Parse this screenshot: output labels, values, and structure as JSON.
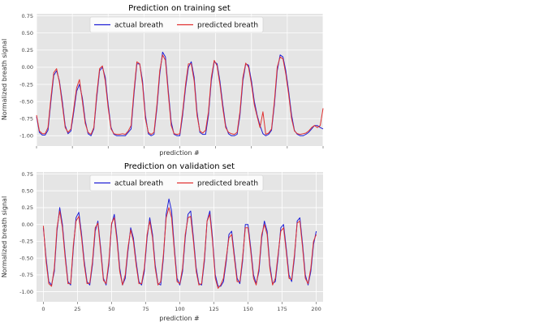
{
  "chart_data": [
    {
      "type": "line",
      "title": "Prediction on training set",
      "xlabel": "prediction #",
      "ylabel": "Normalized breath signal",
      "xlim": [
        0,
        200
      ],
      "ylim": [
        -1.15,
        0.78
      ],
      "x_ticks_labeled": false,
      "yticks": [
        "0.75",
        "0.50",
        "0.25",
        "0.00",
        "-0.25",
        "-0.50",
        "-0.75",
        "-1.00"
      ],
      "ytick_values": [
        0.75,
        0.5,
        0.25,
        0.0,
        -0.25,
        -0.5,
        -0.75,
        -1.0
      ],
      "grid": true,
      "legend_position": "top-center",
      "series": [
        {
          "name": "actual breath",
          "color": "#1f1fd6",
          "x": [
            0,
            2,
            4,
            6,
            8,
            10,
            12,
            14,
            16,
            18,
            20,
            22,
            24,
            26,
            28,
            30,
            32,
            34,
            36,
            38,
            40,
            42,
            44,
            46,
            48,
            50,
            52,
            54,
            56,
            58,
            60,
            62,
            64,
            66,
            68,
            70,
            72,
            74,
            76,
            78,
            80,
            82,
            84,
            86,
            88,
            90,
            92,
            94,
            96,
            98,
            100,
            102,
            104,
            106,
            108,
            110,
            112,
            114,
            116,
            118,
            120,
            122,
            124,
            126,
            128,
            130,
            132,
            134,
            136,
            138,
            140,
            142,
            144,
            146,
            148,
            150,
            152,
            154,
            156,
            158,
            160,
            162,
            164,
            166,
            168,
            170,
            172,
            174,
            176,
            178,
            180,
            182,
            184,
            186,
            188,
            190,
            192,
            194,
            196,
            198,
            200
          ],
          "values": [
            -0.72,
            -0.95,
            -0.99,
            -0.99,
            -0.92,
            -0.5,
            -0.12,
            -0.05,
            -0.2,
            -0.5,
            -0.85,
            -0.97,
            -0.93,
            -0.65,
            -0.35,
            -0.25,
            -0.45,
            -0.78,
            -0.97,
            -1.0,
            -0.9,
            -0.45,
            -0.05,
            0.0,
            -0.15,
            -0.55,
            -0.88,
            -0.98,
            -1.0,
            -1.0,
            -1.0,
            -1.0,
            -0.95,
            -0.9,
            -0.4,
            0.05,
            0.05,
            -0.2,
            -0.7,
            -0.97,
            -1.0,
            -0.98,
            -0.6,
            -0.1,
            0.22,
            0.15,
            -0.35,
            -0.8,
            -0.98,
            -1.0,
            -1.0,
            -0.7,
            -0.3,
            0.0,
            0.08,
            -0.15,
            -0.65,
            -0.95,
            -0.98,
            -0.98,
            -0.7,
            -0.2,
            0.08,
            0.05,
            -0.2,
            -0.55,
            -0.85,
            -0.97,
            -1.0,
            -1.0,
            -0.98,
            -0.7,
            -0.2,
            0.05,
            0.03,
            -0.2,
            -0.5,
            -0.7,
            -0.85,
            -0.97,
            -1.0,
            -0.98,
            -0.92,
            -0.55,
            -0.05,
            0.18,
            0.15,
            -0.05,
            -0.35,
            -0.7,
            -0.92,
            -0.98,
            -1.0,
            -1.0,
            -0.98,
            -0.95,
            -0.9,
            -0.85,
            -0.85,
            -0.88,
            -0.9
          ]
        },
        {
          "name": "predicted breath",
          "color": "#e03030",
          "x": [
            0,
            2,
            4,
            6,
            8,
            10,
            12,
            14,
            16,
            18,
            20,
            22,
            24,
            26,
            28,
            30,
            32,
            34,
            36,
            38,
            40,
            42,
            44,
            46,
            48,
            50,
            52,
            54,
            56,
            58,
            60,
            62,
            64,
            66,
            68,
            70,
            72,
            74,
            76,
            78,
            80,
            82,
            84,
            86,
            88,
            90,
            92,
            94,
            96,
            98,
            100,
            102,
            104,
            106,
            108,
            110,
            112,
            114,
            116,
            118,
            120,
            122,
            124,
            126,
            128,
            130,
            132,
            134,
            136,
            138,
            140,
            142,
            144,
            146,
            148,
            150,
            152,
            154,
            156,
            158,
            160,
            162,
            164,
            166,
            168,
            170,
            172,
            174,
            176,
            178,
            180,
            182,
            184,
            186,
            188,
            190,
            192,
            194,
            196,
            198,
            200
          ],
          "values": [
            -0.7,
            -0.93,
            -0.97,
            -0.97,
            -0.88,
            -0.45,
            -0.08,
            -0.02,
            -0.22,
            -0.55,
            -0.88,
            -0.95,
            -0.9,
            -0.6,
            -0.3,
            -0.18,
            -0.5,
            -0.82,
            -0.95,
            -0.98,
            -0.88,
            -0.4,
            -0.02,
            0.02,
            -0.2,
            -0.6,
            -0.9,
            -0.97,
            -0.98,
            -0.98,
            -0.97,
            -0.98,
            -0.93,
            -0.85,
            -0.35,
            0.08,
            0.05,
            -0.25,
            -0.75,
            -0.95,
            -0.98,
            -0.95,
            -0.55,
            -0.05,
            0.18,
            0.1,
            -0.4,
            -0.85,
            -0.97,
            -0.98,
            -0.97,
            -0.65,
            -0.25,
            0.05,
            0.05,
            -0.2,
            -0.7,
            -0.93,
            -0.96,
            -0.92,
            -0.65,
            -0.15,
            0.1,
            0.02,
            -0.25,
            -0.6,
            -0.88,
            -0.95,
            -0.97,
            -0.98,
            -0.95,
            -0.65,
            -0.15,
            0.06,
            0.0,
            -0.25,
            -0.55,
            -0.72,
            -0.88,
            -0.65,
            -0.98,
            -0.96,
            -0.9,
            -0.5,
            0.0,
            0.15,
            0.12,
            -0.1,
            -0.4,
            -0.75,
            -0.93,
            -0.97,
            -0.98,
            -0.97,
            -0.96,
            -0.93,
            -0.88,
            -0.85,
            -0.88,
            -0.85,
            -0.6
          ]
        }
      ]
    },
    {
      "type": "line",
      "title": "Prediction on validation set",
      "xlabel": "prediction #",
      "ylabel": "Normalized breath signal",
      "xlim": [
        -5,
        205
      ],
      "ylim": [
        -1.15,
        0.78
      ],
      "xticks": [
        "0",
        "25",
        "50",
        "75",
        "100",
        "125",
        "150",
        "175",
        "200"
      ],
      "xtick_values": [
        0,
        25,
        50,
        75,
        100,
        125,
        150,
        175,
        200
      ],
      "yticks": [
        "0.75",
        "0.50",
        "0.25",
        "0.00",
        "-0.25",
        "-0.50",
        "-0.75",
        "-1.00"
      ],
      "ytick_values": [
        0.75,
        0.5,
        0.25,
        0.0,
        -0.25,
        -0.5,
        -0.75,
        -1.0
      ],
      "grid": true,
      "legend_position": "top-center",
      "series": [
        {
          "name": "actual breath",
          "color": "#1f1fd6",
          "x": [
            0,
            2,
            4,
            6,
            8,
            10,
            12,
            14,
            16,
            18,
            20,
            22,
            24,
            26,
            28,
            30,
            32,
            34,
            36,
            38,
            40,
            42,
            44,
            46,
            48,
            50,
            52,
            54,
            56,
            58,
            60,
            62,
            64,
            66,
            68,
            70,
            72,
            74,
            76,
            78,
            80,
            82,
            84,
            86,
            88,
            90,
            92,
            94,
            96,
            98,
            100,
            102,
            104,
            106,
            108,
            110,
            112,
            114,
            116,
            118,
            120,
            122,
            124,
            126,
            128,
            130,
            132,
            134,
            136,
            138,
            140,
            142,
            144,
            146,
            148,
            150,
            152,
            154,
            156,
            158,
            160,
            162,
            164,
            166,
            168,
            170,
            172,
            174,
            176,
            178,
            180,
            182,
            184,
            186,
            188,
            190,
            192,
            194,
            196,
            198,
            200
          ],
          "values": [
            -0.05,
            -0.5,
            -0.85,
            -0.9,
            -0.7,
            -0.1,
            0.25,
            0.0,
            -0.45,
            -0.85,
            -0.9,
            -0.35,
            0.1,
            0.18,
            -0.15,
            -0.55,
            -0.85,
            -0.9,
            -0.6,
            -0.1,
            0.05,
            -0.35,
            -0.8,
            -0.9,
            -0.6,
            0.0,
            0.15,
            -0.2,
            -0.65,
            -0.9,
            -0.8,
            -0.4,
            -0.05,
            -0.2,
            -0.55,
            -0.85,
            -0.9,
            -0.7,
            -0.2,
            0.1,
            -0.15,
            -0.6,
            -0.88,
            -0.9,
            -0.5,
            0.15,
            0.38,
            0.2,
            -0.35,
            -0.8,
            -0.9,
            -0.7,
            -0.2,
            0.15,
            0.2,
            -0.2,
            -0.65,
            -0.88,
            -0.9,
            -0.55,
            0.05,
            0.2,
            -0.2,
            -0.75,
            -0.92,
            -0.92,
            -0.85,
            -0.55,
            -0.15,
            -0.1,
            -0.45,
            -0.8,
            -0.88,
            -0.55,
            0.0,
            0.0,
            -0.35,
            -0.75,
            -0.88,
            -0.7,
            -0.2,
            0.05,
            -0.1,
            -0.6,
            -0.88,
            -0.85,
            -0.5,
            -0.05,
            0.0,
            -0.35,
            -0.75,
            -0.85,
            -0.5,
            0.05,
            0.1,
            -0.3,
            -0.75,
            -0.9,
            -0.7,
            -0.3,
            -0.1
          ]
        },
        {
          "name": "predicted breath",
          "color": "#e03030",
          "x": [
            0,
            2,
            4,
            6,
            8,
            10,
            12,
            14,
            16,
            18,
            20,
            22,
            24,
            26,
            28,
            30,
            32,
            34,
            36,
            38,
            40,
            42,
            44,
            46,
            48,
            50,
            52,
            54,
            56,
            58,
            60,
            62,
            64,
            66,
            68,
            70,
            72,
            74,
            76,
            78,
            80,
            82,
            84,
            86,
            88,
            90,
            92,
            94,
            96,
            98,
            100,
            102,
            104,
            106,
            108,
            110,
            112,
            114,
            116,
            118,
            120,
            122,
            124,
            126,
            128,
            130,
            132,
            134,
            136,
            138,
            140,
            142,
            144,
            146,
            148,
            150,
            152,
            154,
            156,
            158,
            160,
            162,
            164,
            166,
            168,
            170,
            172,
            174,
            176,
            178,
            180,
            182,
            184,
            186,
            188,
            190,
            192,
            194,
            196,
            198,
            200
          ],
          "values": [
            -0.02,
            -0.55,
            -0.88,
            -0.92,
            -0.65,
            -0.05,
            0.2,
            -0.05,
            -0.5,
            -0.88,
            -0.88,
            -0.3,
            0.05,
            0.12,
            -0.2,
            -0.6,
            -0.88,
            -0.87,
            -0.55,
            -0.05,
            0.02,
            -0.4,
            -0.83,
            -0.88,
            -0.55,
            0.02,
            0.1,
            -0.25,
            -0.7,
            -0.9,
            -0.75,
            -0.35,
            -0.08,
            -0.25,
            -0.6,
            -0.88,
            -0.88,
            -0.65,
            -0.15,
            0.05,
            -0.2,
            -0.65,
            -0.9,
            -0.85,
            -0.45,
            0.1,
            0.25,
            0.1,
            -0.4,
            -0.85,
            -0.88,
            -0.65,
            -0.15,
            0.1,
            0.12,
            -0.25,
            -0.7,
            -0.9,
            -0.88,
            -0.5,
            0.05,
            0.15,
            -0.25,
            -0.8,
            -0.95,
            -0.9,
            -0.8,
            -0.5,
            -0.2,
            -0.15,
            -0.5,
            -0.85,
            -0.85,
            -0.5,
            -0.05,
            -0.05,
            -0.4,
            -0.8,
            -0.9,
            -0.65,
            -0.15,
            0.0,
            -0.15,
            -0.65,
            -0.9,
            -0.8,
            -0.45,
            -0.1,
            -0.05,
            -0.4,
            -0.8,
            -0.82,
            -0.45,
            0.02,
            0.05,
            -0.35,
            -0.8,
            -0.88,
            -0.65,
            -0.25,
            -0.15
          ]
        }
      ]
    }
  ]
}
